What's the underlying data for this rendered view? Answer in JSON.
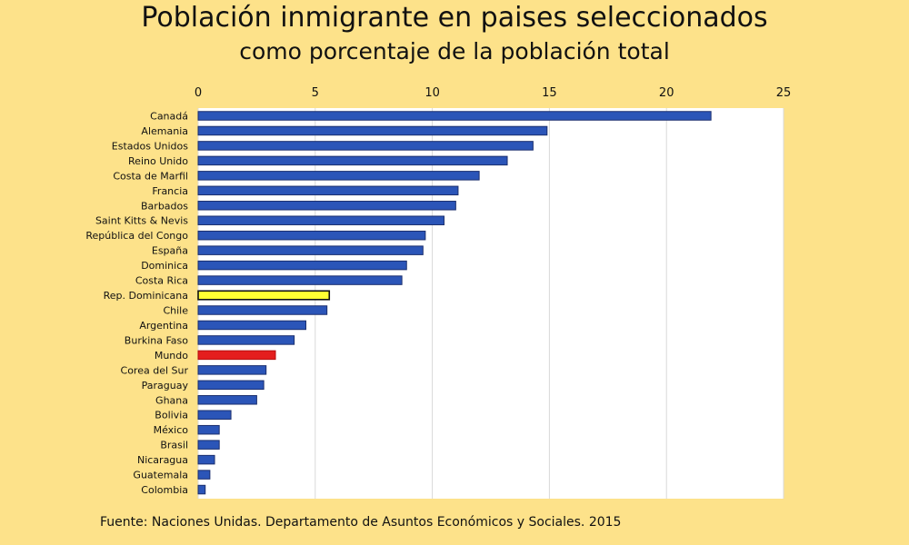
{
  "chart_data": {
    "type": "bar",
    "orientation": "horizontal",
    "title": "Población inmigrante en paises seleccionados",
    "subtitle": "como porcentaje de la población total",
    "xlim": [
      0,
      25
    ],
    "xticks": [
      0,
      5,
      10,
      15,
      20,
      25
    ],
    "x_axis_position": "top",
    "grid": true,
    "categories": [
      "Canadá",
      "Alemania",
      "Estados Unidos",
      "Reino Unido",
      "Costa de Marfil",
      "Francia",
      "Barbados",
      "Saint Kitts & Nevis",
      "República del Congo",
      "España",
      "Dominica",
      "Costa Rica",
      "Rep. Dominicana",
      "Chile",
      "Argentina",
      "Burkina Faso",
      "Mundo",
      "Corea del Sur",
      "Paraguay",
      "Ghana",
      "Bolivia",
      "México",
      "Brasil",
      "Nicaragua",
      "Guatemala",
      "Colombia"
    ],
    "values": [
      21.9,
      14.9,
      14.3,
      13.2,
      12.0,
      11.1,
      11.0,
      10.5,
      9.7,
      9.6,
      8.9,
      8.7,
      5.6,
      5.5,
      4.6,
      4.1,
      3.3,
      2.9,
      2.8,
      2.5,
      1.4,
      0.9,
      0.9,
      0.7,
      0.5,
      0.3
    ],
    "colors": {
      "default": "#2b55b8",
      "highlight": {
        "Rep. Dominicana": "#ffff33",
        "Mundo": "#e41e1e"
      }
    }
  },
  "source": "Fuente: Naciones Unidas. Departamento de Asuntos Económicos y Sociales. 2015"
}
